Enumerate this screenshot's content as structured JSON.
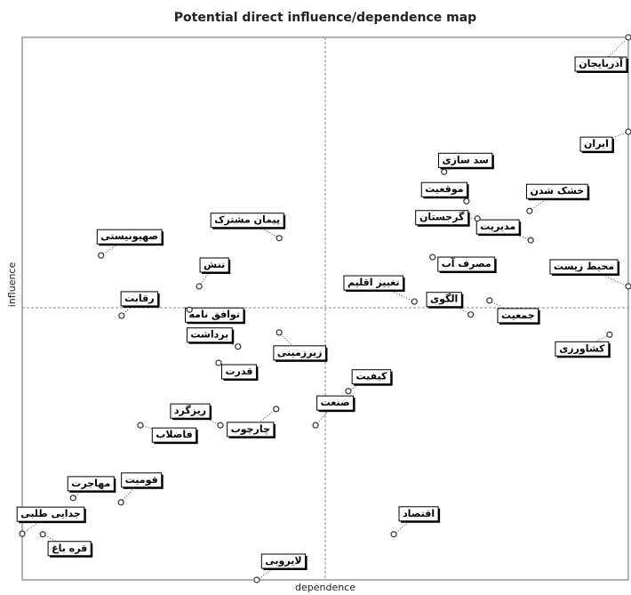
{
  "chart_data": {
    "type": "scatter",
    "title": "Potential direct influence/dependence map",
    "x_label": "dependence",
    "y_label": "influence",
    "xlim": [
      0,
      100
    ],
    "ylim": [
      0,
      100
    ],
    "color": "#333333",
    "labels": [
      "آذربایجان",
      "ایران",
      "محیط زیست",
      "خشک شدن",
      "مدیریت",
      "سد سازی",
      "موقعیت",
      "گرجستان",
      "مصرف آب",
      "تغییر اقلیم",
      "الگوی",
      "جمعیت",
      "کشاورزی",
      "اقتصاد",
      "کیفیت",
      "صنعت",
      "زیرزمینی",
      "چارچوب",
      "پیمان مشترک",
      "صهیونیستی",
      "تنش",
      "رقابت",
      "توافق نامه",
      "برداشت",
      "قدرت",
      "ریزگرد",
      "فاضلاب",
      "قومیت",
      "مهاجرت",
      "جدایی طلبی",
      "قره باغ",
      "لایروبی"
    ],
    "x": [
      100,
      100,
      100,
      83.7,
      83.9,
      69.6,
      73.3,
      75.1,
      67.7,
      64.7,
      74.0,
      77.1,
      96.9,
      61.3,
      53.8,
      48.4,
      42.4,
      41.9,
      42.4,
      13.0,
      29.2,
      16.4,
      27.6,
      35.6,
      32.4,
      32.7,
      19.5,
      16.3,
      8.4,
      0,
      3.4,
      38.7
    ],
    "values": [
      100,
      82.6,
      54.1,
      68.0,
      62.6,
      75.2,
      69.8,
      66.6,
      59.5,
      51.3,
      48.9,
      51.5,
      45.2,
      8.4,
      34.8,
      28.5,
      45.6,
      31.5,
      63.0,
      59.8,
      54.1,
      48.7,
      49.8,
      43.0,
      40.0,
      28.5,
      28.5,
      14.3,
      15.1,
      8.5,
      8.4,
      0
    ]
  }
}
